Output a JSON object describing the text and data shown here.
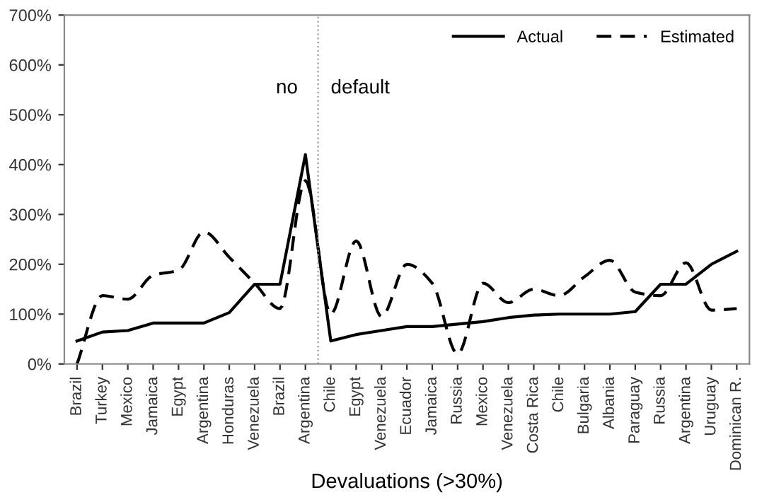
{
  "chart_data": {
    "type": "line",
    "xlabel": "Devaluations (>30%)",
    "categories": [
      "Brazil",
      "Turkey",
      "Mexico",
      "Jamaica",
      "Egypt",
      "Argentina",
      "Honduras",
      "Venezuela",
      "Brazil",
      "Argentina",
      "Chile",
      "Egypt",
      "Venezuela",
      "Ecuador",
      "Jamaica",
      "Russia",
      "Mexico",
      "Venezuela",
      "Costa Rica",
      "Chile",
      "Bulgaria",
      "Albania",
      "Paraguay",
      "Russia",
      "Argentina",
      "Uruguay",
      "Dominican R."
    ],
    "series": [
      {
        "name": "Actual",
        "color": "#000000",
        "line_style": "solid",
        "values": [
          46,
          64,
          67,
          82,
          82,
          82,
          103,
          160,
          160,
          420,
          46,
          59,
          67,
          75,
          75,
          80,
          85,
          93,
          98,
          100,
          100,
          100,
          105,
          160,
          160,
          200,
          226
        ]
      },
      {
        "name": "Estimated",
        "color": "#000000",
        "line_style": "dashed",
        "values": [
          0,
          137,
          130,
          178,
          188,
          265,
          214,
          162,
          111,
          368,
          100,
          247,
          95,
          200,
          162,
          20,
          162,
          123,
          150,
          137,
          175,
          208,
          144,
          137,
          203,
          108,
          111
        ]
      }
    ],
    "ylim": [
      0,
      700
    ],
    "yticks": [
      {
        "value": 0,
        "label": "0%"
      },
      {
        "value": 100,
        "label": "100%"
      },
      {
        "value": 200,
        "label": "200%"
      },
      {
        "value": 300,
        "label": "300%"
      },
      {
        "value": 400,
        "label": "400%"
      },
      {
        "value": 500,
        "label": "500%"
      },
      {
        "value": 600,
        "label": "600%"
      },
      {
        "value": 700,
        "label": "700%"
      }
    ],
    "annotations": [
      "no",
      "default"
    ],
    "legend": "top right",
    "grid": false
  }
}
